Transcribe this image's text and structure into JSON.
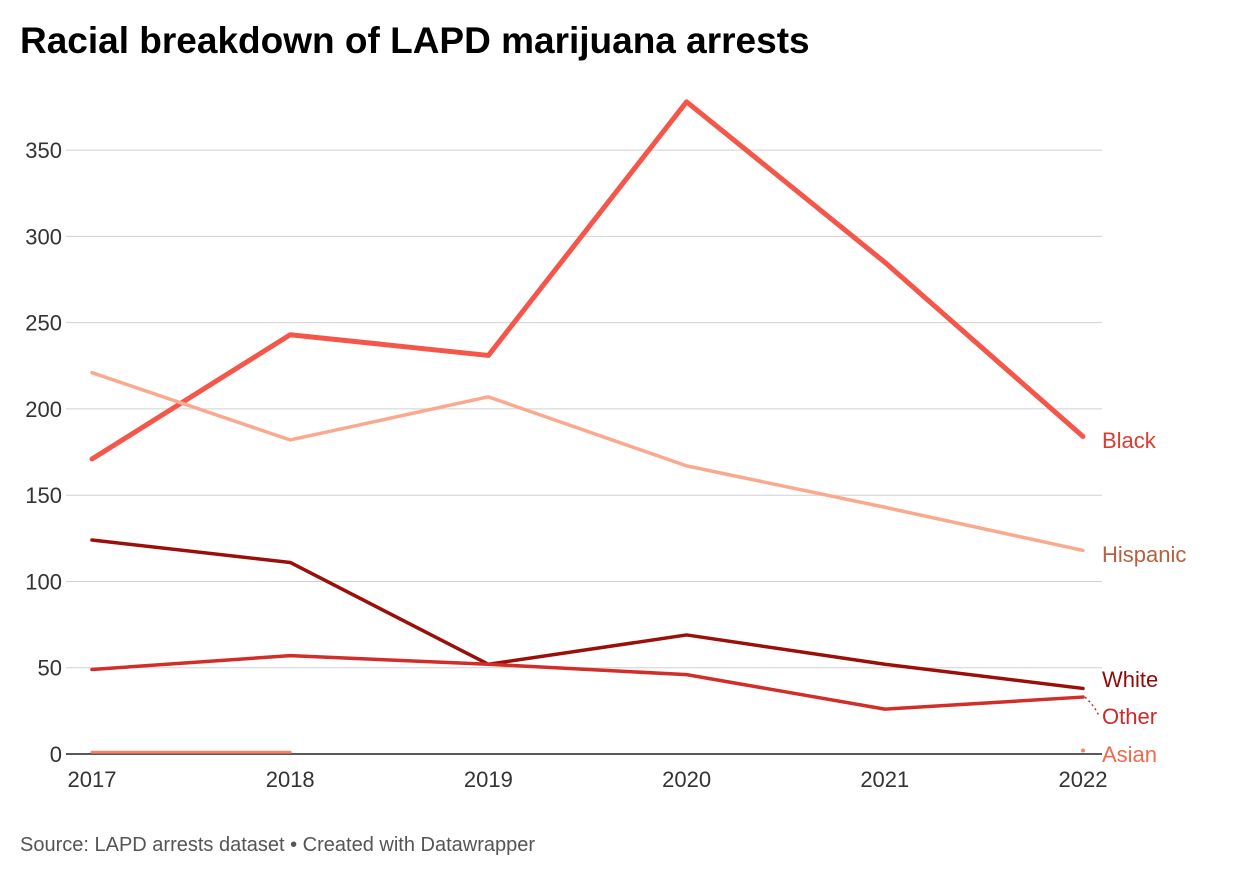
{
  "title": "Racial breakdown of LAPD marijuana arrests",
  "source": "Source: LAPD arrests dataset • Created with Datawrapper",
  "chart_data": {
    "type": "line",
    "title": "Racial breakdown of LAPD marijuana arrests",
    "x": [
      "2017",
      "2018",
      "2019",
      "2020",
      "2021",
      "2022"
    ],
    "ylim": [
      0,
      375
    ],
    "yticks": [
      0,
      50,
      100,
      150,
      200,
      250,
      300,
      350
    ],
    "grid": true,
    "legend": "direct labels at right end of lines",
    "series": [
      {
        "name": "Black",
        "color": "#f4574a",
        "label_color": "#e03a2f",
        "values": [
          171,
          243,
          231,
          378,
          285,
          184
        ]
      },
      {
        "name": "Hispanic",
        "color": "#fba98e",
        "label_color": "#b8603e",
        "values": [
          221,
          182,
          207,
          167,
          143,
          118
        ]
      },
      {
        "name": "White",
        "color": "#9b0f0a",
        "label_color": "#8e0b07",
        "values": [
          124,
          111,
          52,
          69,
          52,
          38
        ]
      },
      {
        "name": "Other",
        "color": "#d12e2a",
        "label_color": "#cf2a26",
        "values": [
          49,
          57,
          52,
          46,
          26,
          33
        ]
      },
      {
        "name": "Asian",
        "color": "#f2856b",
        "label_color": "#ec6b4f",
        "values": [
          1,
          1,
          null,
          null,
          null,
          2
        ]
      }
    ]
  }
}
